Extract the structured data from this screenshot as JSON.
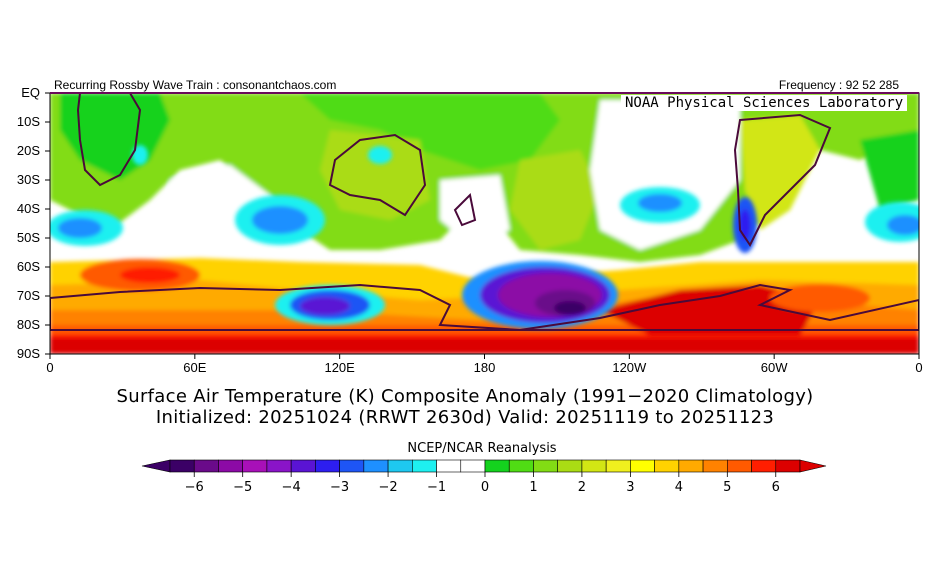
{
  "header": {
    "left": "Recurring Rossby Wave Train : consonantchaos.com",
    "right": "Frequency : 92 52 285",
    "lab": "NOAA Physical Sciences Laboratory"
  },
  "map": {
    "region": "Southern Hemisphere, 0 to 360 longitude, EQ to 90S",
    "lat_labels": [
      "EQ",
      "10S",
      "20S",
      "30S",
      "40S",
      "50S",
      "60S",
      "70S",
      "80S",
      "90S"
    ],
    "lon_labels": [
      "0",
      "60E",
      "120E",
      "180",
      "120W",
      "60W",
      "0"
    ],
    "features": [
      {
        "name": "warm-anomaly-antarctic-coast",
        "sign": "positive",
        "level": "+4 to +6"
      },
      {
        "name": "cold-anomaly-ross-amundsen",
        "sign": "negative",
        "level": "-3 to -6"
      },
      {
        "name": "cold-anomaly-east-antarctica",
        "sign": "negative",
        "level": "-2 to -3"
      },
      {
        "name": "warm-anomaly-south-indian-ocean",
        "sign": "positive",
        "level": "+3 to +5"
      },
      {
        "name": "cold-anomaly-patagonia",
        "sign": "negative",
        "level": "-2 to -3"
      }
    ]
  },
  "titles": {
    "line1": "Surface Air Temperature (K) Composite Anomaly (1991−2020 Climatology)",
    "line2": "Initialized: 20251024 (RRWT 2630d) Valid: 20251119 to 20251123",
    "source": "NCEP/NCAR Reanalysis"
  },
  "colorbar": {
    "colors": [
      "#3b0066",
      "#6a0a8a",
      "#8c0aa6",
      "#a810b8",
      "#8a14c8",
      "#5a14d4",
      "#2d1ef0",
      "#1e55f5",
      "#1e90ff",
      "#1ec8f0",
      "#1ef0f0",
      "#ffffff",
      "#ffffff",
      "#14d21e",
      "#50dc14",
      "#82dc14",
      "#aadc14",
      "#d2e614",
      "#f0f01e",
      "#ffff00",
      "#ffd200",
      "#ffaa00",
      "#ff8200",
      "#ff5a00",
      "#ff1e00",
      "#dc0000"
    ],
    "low_color": "#3b0066",
    "high_color": "#dc0000",
    "labels": [
      "−6",
      "−5",
      "−4",
      "−3",
      "−2",
      "−1",
      "0",
      "1",
      "2",
      "3",
      "4",
      "5",
      "6"
    ]
  }
}
